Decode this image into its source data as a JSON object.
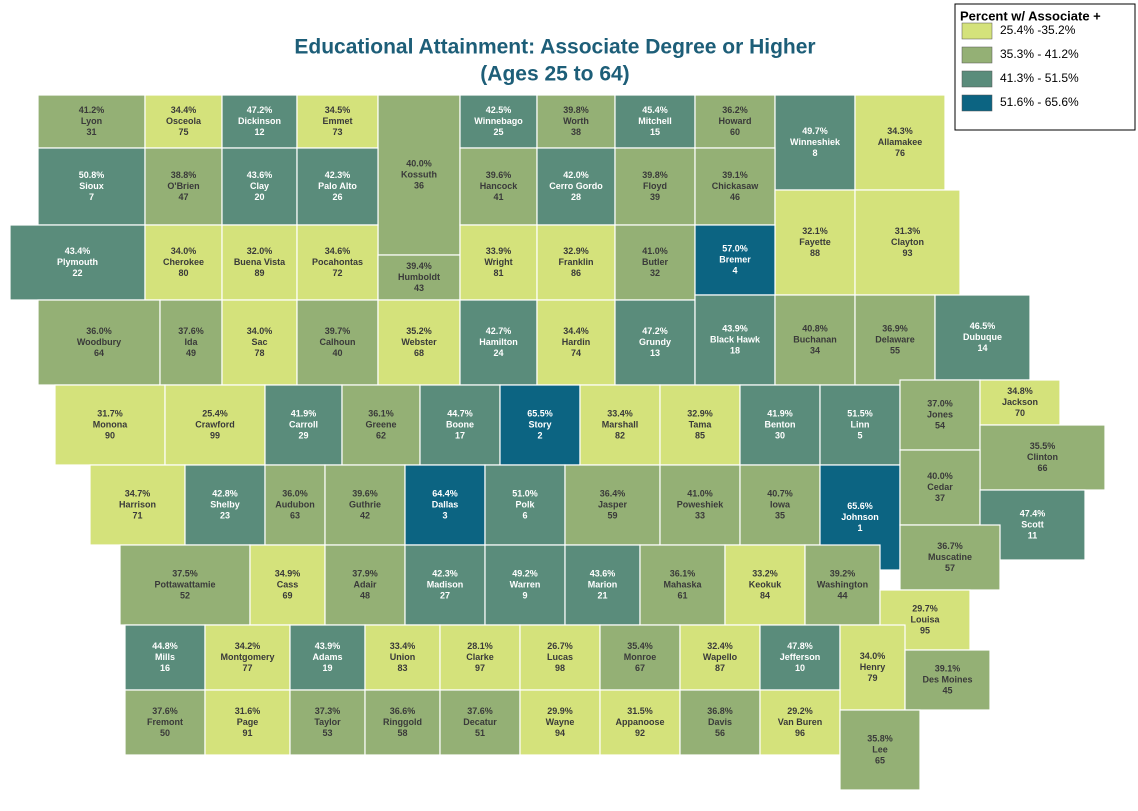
{
  "title": [
    "Educational Attainment: Associate Degree or Higher",
    "(Ages 25 to 64)"
  ],
  "legend": {
    "title": "Percent w/ Associate +",
    "items": [
      {
        "label": "25.4% -35.2%",
        "range": [
          25.4,
          35.2
        ],
        "color": "#d4e27b"
      },
      {
        "label": "35.3% - 41.2%",
        "range": [
          35.3,
          41.2
        ],
        "color": "#94b075"
      },
      {
        "label": "41.3% - 51.5%",
        "range": [
          41.3,
          51.5
        ],
        "color": "#5a8c7b"
      },
      {
        "label": "51.6% - 65.6%",
        "range": [
          51.6,
          65.6
        ],
        "color": "#0c6482"
      }
    ]
  },
  "counties": [
    {
      "name": "Lyon",
      "percent": 41.2,
      "percent_label": "41.2%",
      "rank": 31
    },
    {
      "name": "Osceola",
      "percent": 34.4,
      "percent_label": "34.4%",
      "rank": 75
    },
    {
      "name": "Dickinson",
      "percent": 47.2,
      "percent_label": "47.2%",
      "rank": 12
    },
    {
      "name": "Emmet",
      "percent": 34.5,
      "percent_label": "34.5%",
      "rank": 73
    },
    {
      "name": "Kossuth",
      "percent": 40.0,
      "percent_label": "40.0%",
      "rank": 36
    },
    {
      "name": "Winnebago",
      "percent": 42.5,
      "percent_label": "42.5%",
      "rank": 25
    },
    {
      "name": "Worth",
      "percent": 39.8,
      "percent_label": "39.8%",
      "rank": 38
    },
    {
      "name": "Mitchell",
      "percent": 45.4,
      "percent_label": "45.4%",
      "rank": 15
    },
    {
      "name": "Howard",
      "percent": 36.2,
      "percent_label": "36.2%",
      "rank": 60
    },
    {
      "name": "Winneshiek",
      "percent": 49.7,
      "percent_label": "49.7%",
      "rank": 8
    },
    {
      "name": "Allamakee",
      "percent": 34.3,
      "percent_label": "34.3%",
      "rank": 76
    },
    {
      "name": "Sioux",
      "percent": 50.8,
      "percent_label": "50.8%",
      "rank": 7
    },
    {
      "name": "O'Brien",
      "percent": 38.8,
      "percent_label": "38.8%",
      "rank": 47
    },
    {
      "name": "Clay",
      "percent": 43.6,
      "percent_label": "43.6%",
      "rank": 20
    },
    {
      "name": "Palo Alto",
      "percent": 42.3,
      "percent_label": "42.3%",
      "rank": 26
    },
    {
      "name": "Hancock",
      "percent": 39.6,
      "percent_label": "39.6%",
      "rank": 41
    },
    {
      "name": "Cerro Gordo",
      "percent": 42.0,
      "percent_label": "42.0%",
      "rank": 28
    },
    {
      "name": "Floyd",
      "percent": 39.8,
      "percent_label": "39.8%",
      "rank": 39
    },
    {
      "name": "Chickasaw",
      "percent": 39.1,
      "percent_label": "39.1%",
      "rank": 46
    },
    {
      "name": "Fayette",
      "percent": 32.1,
      "percent_label": "32.1%",
      "rank": 88
    },
    {
      "name": "Clayton",
      "percent": 31.3,
      "percent_label": "31.3%",
      "rank": 93
    },
    {
      "name": "Plymouth",
      "percent": 43.4,
      "percent_label": "43.4%",
      "rank": 22
    },
    {
      "name": "Cherokee",
      "percent": 34.0,
      "percent_label": "34.0%",
      "rank": 80
    },
    {
      "name": "Buena Vista",
      "percent": 32.0,
      "percent_label": "32.0%",
      "rank": 89
    },
    {
      "name": "Pocahontas",
      "percent": 34.6,
      "percent_label": "34.6%",
      "rank": 72
    },
    {
      "name": "Humboldt",
      "percent": 39.4,
      "percent_label": "39.4%",
      "rank": 43
    },
    {
      "name": "Wright",
      "percent": 33.9,
      "percent_label": "33.9%",
      "rank": 81
    },
    {
      "name": "Franklin",
      "percent": 32.9,
      "percent_label": "32.9%",
      "rank": 86
    },
    {
      "name": "Butler",
      "percent": 41.0,
      "percent_label": "41.0%",
      "rank": 32
    },
    {
      "name": "Bremer",
      "percent": 57.0,
      "percent_label": "57.0%",
      "rank": 4
    },
    {
      "name": "Woodbury",
      "percent": 36.0,
      "percent_label": "36.0%",
      "rank": 64
    },
    {
      "name": "Ida",
      "percent": 37.6,
      "percent_label": "37.6%",
      "rank": 49
    },
    {
      "name": "Sac",
      "percent": 34.0,
      "percent_label": "34.0%",
      "rank": 78
    },
    {
      "name": "Calhoun",
      "percent": 39.7,
      "percent_label": "39.7%",
      "rank": 40
    },
    {
      "name": "Webster",
      "percent": 35.2,
      "percent_label": "35.2%",
      "rank": 68
    },
    {
      "name": "Hamilton",
      "percent": 42.7,
      "percent_label": "42.7%",
      "rank": 24
    },
    {
      "name": "Hardin",
      "percent": 34.4,
      "percent_label": "34.4%",
      "rank": 74
    },
    {
      "name": "Grundy",
      "percent": 47.2,
      "percent_label": "47.2%",
      "rank": 13
    },
    {
      "name": "Black Hawk",
      "percent": 43.9,
      "percent_label": "43.9%",
      "rank": 18
    },
    {
      "name": "Buchanan",
      "percent": 40.8,
      "percent_label": "40.8%",
      "rank": 34
    },
    {
      "name": "Delaware",
      "percent": 36.9,
      "percent_label": "36.9%",
      "rank": 55
    },
    {
      "name": "Dubuque",
      "percent": 46.5,
      "percent_label": "46.5%",
      "rank": 14
    },
    {
      "name": "Monona",
      "percent": 31.7,
      "percent_label": "31.7%",
      "rank": 90
    },
    {
      "name": "Crawford",
      "percent": 25.4,
      "percent_label": "25.4%",
      "rank": 99
    },
    {
      "name": "Carroll",
      "percent": 41.9,
      "percent_label": "41.9%",
      "rank": 29
    },
    {
      "name": "Greene",
      "percent": 36.1,
      "percent_label": "36.1%",
      "rank": 62
    },
    {
      "name": "Boone",
      "percent": 44.7,
      "percent_label": "44.7%",
      "rank": 17
    },
    {
      "name": "Story",
      "percent": 65.5,
      "percent_label": "65.5%",
      "rank": 2
    },
    {
      "name": "Marshall",
      "percent": 33.4,
      "percent_label": "33.4%",
      "rank": 82
    },
    {
      "name": "Tama",
      "percent": 32.9,
      "percent_label": "32.9%",
      "rank": 85
    },
    {
      "name": "Benton",
      "percent": 41.9,
      "percent_label": "41.9%",
      "rank": 30
    },
    {
      "name": "Linn",
      "percent": 51.5,
      "percent_label": "51.5%",
      "rank": 5
    },
    {
      "name": "Jones",
      "percent": 37.0,
      "percent_label": "37.0%",
      "rank": 54
    },
    {
      "name": "Jackson",
      "percent": 34.8,
      "percent_label": "34.8%",
      "rank": 70
    },
    {
      "name": "Clinton",
      "percent": 35.5,
      "percent_label": "35.5%",
      "rank": 66
    },
    {
      "name": "Harrison",
      "percent": 34.7,
      "percent_label": "34.7%",
      "rank": 71
    },
    {
      "name": "Shelby",
      "percent": 42.8,
      "percent_label": "42.8%",
      "rank": 23
    },
    {
      "name": "Audubon",
      "percent": 36.0,
      "percent_label": "36.0%",
      "rank": 63
    },
    {
      "name": "Guthrie",
      "percent": 39.6,
      "percent_label": "39.6%",
      "rank": 42
    },
    {
      "name": "Dallas",
      "percent": 64.4,
      "percent_label": "64.4%",
      "rank": 3
    },
    {
      "name": "Polk",
      "percent": 51.0,
      "percent_label": "51.0%",
      "rank": 6
    },
    {
      "name": "Jasper",
      "percent": 36.4,
      "percent_label": "36.4%",
      "rank": 59
    },
    {
      "name": "Poweshiek",
      "percent": 41.0,
      "percent_label": "41.0%",
      "rank": 33
    },
    {
      "name": "Iowa",
      "percent": 40.7,
      "percent_label": "40.7%",
      "rank": 35
    },
    {
      "name": "Johnson",
      "percent": 65.6,
      "percent_label": "65.6%",
      "rank": 1
    },
    {
      "name": "Cedar",
      "percent": 40.0,
      "percent_label": "40.0%",
      "rank": 37
    },
    {
      "name": "Scott",
      "percent": 47.4,
      "percent_label": "47.4%",
      "rank": 11
    },
    {
      "name": "Muscatine",
      "percent": 36.7,
      "percent_label": "36.7%",
      "rank": 57
    },
    {
      "name": "Pottawattamie",
      "percent": 37.5,
      "percent_label": "37.5%",
      "rank": 52
    },
    {
      "name": "Cass",
      "percent": 34.9,
      "percent_label": "34.9%",
      "rank": 69
    },
    {
      "name": "Adair",
      "percent": 37.9,
      "percent_label": "37.9%",
      "rank": 48
    },
    {
      "name": "Madison",
      "percent": 42.3,
      "percent_label": "42.3%",
      "rank": 27
    },
    {
      "name": "Warren",
      "percent": 49.2,
      "percent_label": "49.2%",
      "rank": 9
    },
    {
      "name": "Marion",
      "percent": 43.6,
      "percent_label": "43.6%",
      "rank": 21
    },
    {
      "name": "Mahaska",
      "percent": 36.1,
      "percent_label": "36.1%",
      "rank": 61
    },
    {
      "name": "Keokuk",
      "percent": 33.2,
      "percent_label": "33.2%",
      "rank": 84
    },
    {
      "name": "Washington",
      "percent": 39.2,
      "percent_label": "39.2%",
      "rank": 44
    },
    {
      "name": "Louisa",
      "percent": 29.7,
      "percent_label": "29.7%",
      "rank": 95
    },
    {
      "name": "Mills",
      "percent": 44.8,
      "percent_label": "44.8%",
      "rank": 16
    },
    {
      "name": "Montgomery",
      "percent": 34.2,
      "percent_label": "34.2%",
      "rank": 77
    },
    {
      "name": "Adams",
      "percent": 43.9,
      "percent_label": "43.9%",
      "rank": 19
    },
    {
      "name": "Union",
      "percent": 33.4,
      "percent_label": "33.4%",
      "rank": 83
    },
    {
      "name": "Clarke",
      "percent": 28.1,
      "percent_label": "28.1%",
      "rank": 97
    },
    {
      "name": "Lucas",
      "percent": 26.7,
      "percent_label": "26.7%",
      "rank": 98
    },
    {
      "name": "Monroe",
      "percent": 35.4,
      "percent_label": "35.4%",
      "rank": 67
    },
    {
      "name": "Wapello",
      "percent": 32.4,
      "percent_label": "32.4%",
      "rank": 87
    },
    {
      "name": "Jefferson",
      "percent": 47.8,
      "percent_label": "47.8%",
      "rank": 10
    },
    {
      "name": "Henry",
      "percent": 34.0,
      "percent_label": "34.0%",
      "rank": 79
    },
    {
      "name": "Des Moines",
      "percent": 39.1,
      "percent_label": "39.1%",
      "rank": 45
    },
    {
      "name": "Fremont",
      "percent": 37.6,
      "percent_label": "37.6%",
      "rank": 50
    },
    {
      "name": "Page",
      "percent": 31.6,
      "percent_label": "31.6%",
      "rank": 91
    },
    {
      "name": "Taylor",
      "percent": 37.3,
      "percent_label": "37.3%",
      "rank": 53
    },
    {
      "name": "Ringgold",
      "percent": 36.6,
      "percent_label": "36.6%",
      "rank": 58
    },
    {
      "name": "Decatur",
      "percent": 37.6,
      "percent_label": "37.6%",
      "rank": 51
    },
    {
      "name": "Wayne",
      "percent": 29.9,
      "percent_label": "29.9%",
      "rank": 94
    },
    {
      "name": "Appanoose",
      "percent": 31.5,
      "percent_label": "31.5%",
      "rank": 92
    },
    {
      "name": "Davis",
      "percent": 36.8,
      "percent_label": "36.8%",
      "rank": 56
    },
    {
      "name": "Van Buren",
      "percent": 29.2,
      "percent_label": "29.2%",
      "rank": 96
    },
    {
      "name": "Lee",
      "percent": 35.8,
      "percent_label": "35.8%",
      "rank": 65
    }
  ]
}
